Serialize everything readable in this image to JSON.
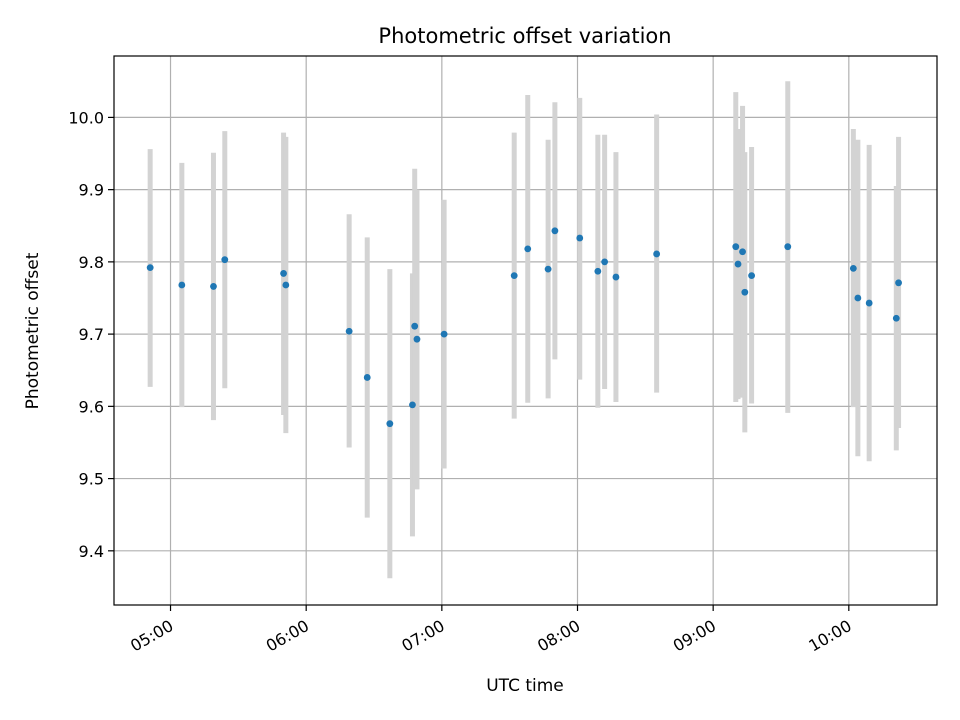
{
  "chart_data": {
    "type": "scatter",
    "title": "Photometric offset variation",
    "xlabel": "UTC time",
    "ylabel": "Photometric offset",
    "grid": true,
    "xlim": [
      "04:35",
      "10:39"
    ],
    "ylim": [
      9.325,
      10.085
    ],
    "x_ticks": [
      "05:00",
      "06:00",
      "07:00",
      "08:00",
      "09:00",
      "10:00"
    ],
    "y_ticks": [
      9.4,
      9.5,
      9.6,
      9.7,
      9.8,
      9.9,
      10.0
    ],
    "y_tick_labels": [
      "9.4",
      "9.5",
      "9.6",
      "9.7",
      "9.8",
      "9.9",
      "10.0"
    ],
    "colors": {
      "point": "#1f77b4",
      "errorbar": "#d3d3d3",
      "grid": "#b0b0b0"
    },
    "points": [
      {
        "x": "04:51",
        "y": 9.792,
        "ylow": 9.627,
        "yhigh": 9.956
      },
      {
        "x": "05:05",
        "y": 9.768,
        "ylow": 9.599,
        "yhigh": 9.937
      },
      {
        "x": "05:19",
        "y": 9.766,
        "ylow": 9.581,
        "yhigh": 9.951
      },
      {
        "x": "05:24",
        "y": 9.803,
        "ylow": 9.625,
        "yhigh": 9.981
      },
      {
        "x": "05:50",
        "y": 9.784,
        "ylow": 9.588,
        "yhigh": 9.979
      },
      {
        "x": "05:51",
        "y": 9.768,
        "ylow": 9.563,
        "yhigh": 9.973
      },
      {
        "x": "06:19",
        "y": 9.704,
        "ylow": 9.543,
        "yhigh": 9.866
      },
      {
        "x": "06:27",
        "y": 9.64,
        "ylow": 9.446,
        "yhigh": 9.834
      },
      {
        "x": "06:37",
        "y": 9.576,
        "ylow": 9.362,
        "yhigh": 9.79
      },
      {
        "x": "06:47",
        "y": 9.602,
        "ylow": 9.42,
        "yhigh": 9.784
      },
      {
        "x": "06:48",
        "y": 9.711,
        "ylow": 9.492,
        "yhigh": 9.929
      },
      {
        "x": "06:49",
        "y": 9.693,
        "ylow": 9.485,
        "yhigh": 9.9
      },
      {
        "x": "07:01",
        "y": 9.7,
        "ylow": 9.514,
        "yhigh": 9.886
      },
      {
        "x": "07:32",
        "y": 9.781,
        "ylow": 9.583,
        "yhigh": 9.979
      },
      {
        "x": "07:38",
        "y": 9.818,
        "ylow": 9.605,
        "yhigh": 10.031
      },
      {
        "x": "07:47",
        "y": 9.79,
        "ylow": 9.611,
        "yhigh": 9.969
      },
      {
        "x": "07:50",
        "y": 9.843,
        "ylow": 9.665,
        "yhigh": 10.021
      },
      {
        "x": "08:01",
        "y": 9.833,
        "ylow": 9.637,
        "yhigh": 10.027
      },
      {
        "x": "08:09",
        "y": 9.787,
        "ylow": 9.598,
        "yhigh": 9.976
      },
      {
        "x": "08:12",
        "y": 9.8,
        "ylow": 9.624,
        "yhigh": 9.976
      },
      {
        "x": "08:17",
        "y": 9.779,
        "ylow": 9.606,
        "yhigh": 9.952
      },
      {
        "x": "08:35",
        "y": 9.811,
        "ylow": 9.619,
        "yhigh": 10.004
      },
      {
        "x": "09:10",
        "y": 9.821,
        "ylow": 9.606,
        "yhigh": 10.035
      },
      {
        "x": "09:11",
        "y": 9.797,
        "ylow": 9.61,
        "yhigh": 9.984
      },
      {
        "x": "09:13",
        "y": 9.814,
        "ylow": 9.612,
        "yhigh": 10.016
      },
      {
        "x": "09:14",
        "y": 9.758,
        "ylow": 9.564,
        "yhigh": 9.952
      },
      {
        "x": "09:17",
        "y": 9.781,
        "ylow": 9.604,
        "yhigh": 9.959
      },
      {
        "x": "09:33",
        "y": 9.821,
        "ylow": 9.591,
        "yhigh": 10.05
      },
      {
        "x": "10:02",
        "y": 9.791,
        "ylow": 9.599,
        "yhigh": 9.984
      },
      {
        "x": "10:04",
        "y": 9.75,
        "ylow": 9.531,
        "yhigh": 9.969
      },
      {
        "x": "10:09",
        "y": 9.743,
        "ylow": 9.524,
        "yhigh": 9.962
      },
      {
        "x": "10:21",
        "y": 9.722,
        "ylow": 9.539,
        "yhigh": 9.905
      },
      {
        "x": "10:22",
        "y": 9.771,
        "ylow": 9.57,
        "yhigh": 9.973
      }
    ]
  }
}
